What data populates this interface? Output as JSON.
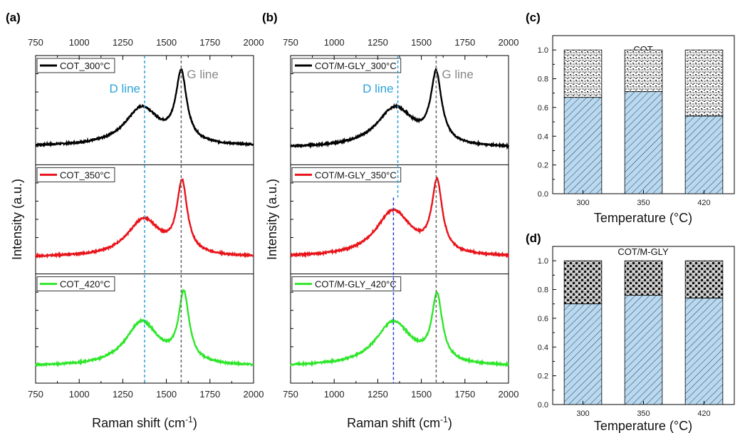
{
  "panel_labels": {
    "a": "(a)",
    "b": "(b)",
    "c": "(c)",
    "d": "(d)"
  },
  "colors": {
    "series_300": "#000000",
    "series_350": "#e8141b",
    "series_420": "#2ee62a",
    "d_line": "#2aa3d8",
    "d_line_dark": "#1b3fd6",
    "g_line": "#666666",
    "bar_fill": "#b9d9f0"
  },
  "chart_data": [
    {
      "id": "a",
      "type": "line",
      "xlabel_main": "Raman shift (cm",
      "xlabel_sup": "-1",
      "xlabel_end": ")",
      "ylabel": "Intensity (a.u.)",
      "xlim": [
        750,
        2000
      ],
      "xticks": [
        "750",
        "1000",
        "1250",
        "1500",
        "1750",
        "2000"
      ],
      "d_line_label": "D line",
      "g_line_label": "G line",
      "d_line_x": 1375,
      "g_line_x": 1585,
      "series": [
        {
          "name": "COT_300°C",
          "color_key": "series_300",
          "baseline": 0.1,
          "peaks": [
            [
              1360,
              0.55,
              120
            ],
            [
              1585,
              0.9,
              38
            ]
          ]
        },
        {
          "name": "COT_350°C",
          "color_key": "series_350",
          "baseline": 0.08,
          "peaks": [
            [
              1370,
              0.52,
              115
            ],
            [
              1590,
              0.9,
              36
            ]
          ]
        },
        {
          "name": "COT_420°C",
          "color_key": "series_420",
          "baseline": 0.08,
          "peaks": [
            [
              1360,
              0.6,
              115
            ],
            [
              1600,
              0.88,
              36
            ]
          ]
        }
      ]
    },
    {
      "id": "b",
      "type": "line",
      "xlabel_main": "Raman shift (cm",
      "xlabel_sup": "-1",
      "xlabel_end": ")",
      "ylabel": "Intensity (a.u.)",
      "xlim": [
        750,
        2000
      ],
      "xticks": [
        "750",
        "1000",
        "1250",
        "1500",
        "1750",
        "2000"
      ],
      "d_line_label": "D line",
      "g_line_label": "G line",
      "d_line_x": 1365,
      "g_line_x": 1585,
      "d_line_x_lower": 1340,
      "series": [
        {
          "name": "COT/M-GLY_300°C",
          "color_key": "series_300",
          "baseline": 0.08,
          "peaks": [
            [
              1350,
              0.55,
              130
            ],
            [
              1585,
              0.88,
              38
            ]
          ]
        },
        {
          "name": "COT/M-GLY_350°C",
          "color_key": "series_350",
          "baseline": 0.08,
          "peaks": [
            [
              1340,
              0.62,
              125
            ],
            [
              1590,
              0.9,
              36
            ]
          ]
        },
        {
          "name": "COT/M-GLY_420°C",
          "color_key": "series_420",
          "baseline": 0.08,
          "peaks": [
            [
              1340,
              0.6,
              125
            ],
            [
              1590,
              0.85,
              36
            ]
          ]
        }
      ]
    },
    {
      "id": "c",
      "type": "bar",
      "title": "COT",
      "xlabel": "Temperature (°C)",
      "categories": [
        "300",
        "350",
        "420"
      ],
      "values": [
        0.67,
        0.71,
        0.54
      ],
      "totals": [
        1.0,
        1.0,
        1.0
      ],
      "ylim": [
        0,
        1.1
      ],
      "yticks": [
        "0.0",
        "0.2",
        "0.4",
        "0.6",
        "0.8",
        "1.0"
      ]
    },
    {
      "id": "d",
      "type": "bar",
      "title": "COT/M-GLY",
      "xlabel": "Temperature (°C)",
      "categories": [
        "300",
        "350",
        "420"
      ],
      "values": [
        0.7,
        0.76,
        0.74
      ],
      "totals": [
        1.0,
        1.0,
        1.0
      ],
      "ylim": [
        0,
        1.1
      ],
      "yticks": [
        "0.0",
        "0.2",
        "0.4",
        "0.6",
        "0.8",
        "1.0"
      ]
    }
  ]
}
